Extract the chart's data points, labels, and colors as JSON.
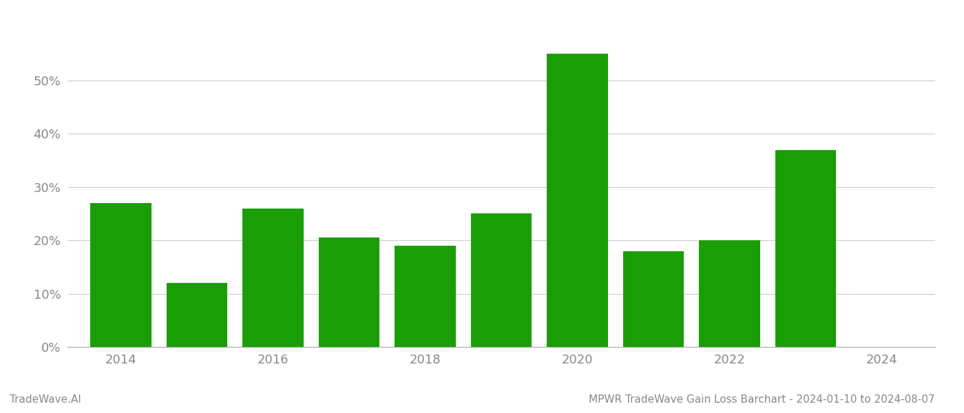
{
  "years": [
    2014,
    2015,
    2016,
    2017,
    2018,
    2019,
    2020,
    2021,
    2022,
    2023
  ],
  "values": [
    0.27,
    0.12,
    0.26,
    0.205,
    0.19,
    0.25,
    0.55,
    0.18,
    0.2,
    0.37
  ],
  "bar_color": "#1a9e06",
  "title": "MPWR TradeWave Gain Loss Barchart - 2024-01-10 to 2024-08-07",
  "watermark": "TradeWave.AI",
  "ylim": [
    0,
    0.62
  ],
  "yticks": [
    0.0,
    0.1,
    0.2,
    0.3,
    0.4,
    0.5
  ],
  "xlim": [
    2013.3,
    2024.7
  ],
  "xticks": [
    2014,
    2016,
    2018,
    2020,
    2022,
    2024
  ],
  "background_color": "#ffffff",
  "grid_color": "#cccccc",
  "title_fontsize": 11,
  "watermark_fontsize": 11,
  "tick_fontsize": 13,
  "bar_width": 0.8
}
